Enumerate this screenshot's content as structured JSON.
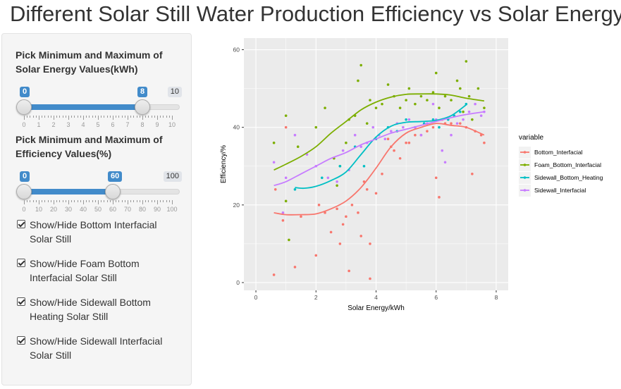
{
  "page": {
    "title": "Different Solar Still Water Production Efficiency vs Solar Energy"
  },
  "sidebar": {
    "energy_slider": {
      "label": "Pick Minimum and Maximum of Solar Energy Values(kWh)",
      "min": 0,
      "max": 10,
      "from": 0,
      "to": 8,
      "from_label": "0",
      "to_label": "8",
      "max_label": "10",
      "ticks": [
        "0",
        "1",
        "2",
        "3",
        "4",
        "5",
        "6",
        "7",
        "8",
        "9",
        "10"
      ]
    },
    "efficiency_slider": {
      "label": "Pick Minimum and Maximum of Efficiency Values(%)",
      "min": 0,
      "max": 100,
      "from": 0,
      "to": 60,
      "from_label": "0",
      "to_label": "60",
      "max_label": "100",
      "ticks": [
        "0",
        "10",
        "20",
        "30",
        "40",
        "50",
        "60",
        "70",
        "80",
        "90",
        "100"
      ]
    },
    "checkboxes": [
      {
        "label": "Show/Hide Bottom Interfacial Solar Still",
        "checked": true
      },
      {
        "label": "Show/Hide Foam Bottom Interfacial Solar Still",
        "checked": true
      },
      {
        "label": "Show/Hide Sidewall Bottom Heating Solar Still",
        "checked": true
      },
      {
        "label": "Show/Hide Sidewall Interfacial Solar Still",
        "checked": true
      }
    ]
  },
  "chart_data": {
    "type": "scatter",
    "xlabel": "Solar Energy/kWh",
    "ylabel": "Efficiency/%",
    "xlim": [
      -0.4,
      8.4
    ],
    "ylim": [
      -2,
      63
    ],
    "x_ticks": [
      0,
      2,
      4,
      6,
      8
    ],
    "y_ticks": [
      0,
      20,
      40,
      60
    ],
    "grid": true,
    "legend_title": "variable",
    "legend_position": "right",
    "series": [
      {
        "name": "Bottom_Interfacial",
        "color": "#F8766D",
        "points": [
          [
            0.6,
            2
          ],
          [
            0.65,
            24
          ],
          [
            0.9,
            16
          ],
          [
            1.0,
            40
          ],
          [
            1.3,
            4
          ],
          [
            1.5,
            17
          ],
          [
            2.0,
            7
          ],
          [
            2.1,
            20
          ],
          [
            2.3,
            18
          ],
          [
            2.5,
            13
          ],
          [
            2.7,
            19
          ],
          [
            2.8,
            10
          ],
          [
            2.9,
            15
          ],
          [
            3.0,
            17
          ],
          [
            3.1,
            3
          ],
          [
            3.2,
            20
          ],
          [
            3.4,
            18
          ],
          [
            3.5,
            12
          ],
          [
            3.6,
            26
          ],
          [
            3.7,
            24
          ],
          [
            3.8,
            10
          ],
          [
            3.8,
            1
          ],
          [
            4.0,
            23
          ],
          [
            4.2,
            28
          ],
          [
            4.4,
            37
          ],
          [
            4.5,
            35
          ],
          [
            4.6,
            34
          ],
          [
            4.8,
            32
          ],
          [
            5.0,
            36
          ],
          [
            5.1,
            36
          ],
          [
            5.3,
            38
          ],
          [
            5.5,
            38
          ],
          [
            5.7,
            39
          ],
          [
            5.9,
            40
          ],
          [
            6.0,
            27
          ],
          [
            6.1,
            22
          ],
          [
            6.2,
            42
          ],
          [
            6.3,
            41
          ],
          [
            6.5,
            41
          ],
          [
            6.6,
            43
          ],
          [
            6.8,
            41
          ],
          [
            7.0,
            40
          ],
          [
            7.2,
            28
          ],
          [
            7.3,
            39
          ],
          [
            7.5,
            38
          ],
          [
            7.6,
            36
          ]
        ],
        "trend": [
          [
            0.6,
            18
          ],
          [
            1.0,
            17.5
          ],
          [
            1.5,
            17.5
          ],
          [
            2.0,
            17.7
          ],
          [
            2.5,
            19
          ],
          [
            3.0,
            21
          ],
          [
            3.5,
            24.5
          ],
          [
            4.0,
            29.5
          ],
          [
            4.5,
            35
          ],
          [
            5.0,
            38.5
          ],
          [
            5.5,
            40
          ],
          [
            6.0,
            41
          ],
          [
            6.5,
            40.5
          ],
          [
            7.0,
            40
          ],
          [
            7.6,
            38
          ]
        ]
      },
      {
        "name": "Foam_Bottom_Interfacial",
        "color": "#7CAE00",
        "points": [
          [
            0.6,
            36
          ],
          [
            1.0,
            43
          ],
          [
            1.0,
            21
          ],
          [
            1.1,
            11
          ],
          [
            1.4,
            35
          ],
          [
            2.0,
            40
          ],
          [
            2.3,
            45
          ],
          [
            2.6,
            32
          ],
          [
            2.7,
            25
          ],
          [
            2.8,
            30
          ],
          [
            3.0,
            36
          ],
          [
            3.1,
            42
          ],
          [
            3.3,
            43
          ],
          [
            3.4,
            52
          ],
          [
            3.5,
            56
          ],
          [
            3.7,
            41
          ],
          [
            3.8,
            47
          ],
          [
            4.0,
            45
          ],
          [
            4.2,
            46
          ],
          [
            4.4,
            51
          ],
          [
            4.6,
            48
          ],
          [
            4.8,
            45
          ],
          [
            5.0,
            47
          ],
          [
            5.1,
            50
          ],
          [
            5.3,
            46
          ],
          [
            5.5,
            48
          ],
          [
            5.7,
            47
          ],
          [
            5.9,
            49
          ],
          [
            6.0,
            54
          ],
          [
            6.1,
            45
          ],
          [
            6.3,
            48
          ],
          [
            6.5,
            47
          ],
          [
            6.7,
            52
          ],
          [
            6.8,
            50
          ],
          [
            6.9,
            44
          ],
          [
            7.0,
            57
          ],
          [
            7.1,
            48
          ],
          [
            7.2,
            42
          ],
          [
            7.4,
            50
          ],
          [
            7.6,
            45
          ]
        ],
        "trend": [
          [
            0.6,
            29
          ],
          [
            1.0,
            30.5
          ],
          [
            1.5,
            32.5
          ],
          [
            2.0,
            35
          ],
          [
            2.5,
            38.5
          ],
          [
            3.0,
            41.5
          ],
          [
            3.5,
            44.5
          ],
          [
            4.0,
            46.5
          ],
          [
            4.5,
            47.8
          ],
          [
            5.0,
            48.5
          ],
          [
            5.5,
            48.6
          ],
          [
            6.0,
            48.6
          ],
          [
            6.5,
            48.3
          ],
          [
            7.0,
            47.5
          ],
          [
            7.6,
            46.8
          ]
        ]
      },
      {
        "name": "Sidewall_Bottom_Heating",
        "color": "#00BFC4",
        "points": [
          [
            1.3,
            24
          ],
          [
            2.2,
            27
          ],
          [
            2.8,
            30
          ],
          [
            3.3,
            35
          ],
          [
            3.6,
            30
          ],
          [
            4.0,
            37
          ],
          [
            4.4,
            40
          ],
          [
            4.7,
            39
          ],
          [
            5.0,
            42
          ],
          [
            5.3,
            40
          ],
          [
            5.6,
            41
          ],
          [
            5.9,
            42
          ],
          [
            6.1,
            40
          ],
          [
            6.4,
            42
          ],
          [
            6.6,
            43
          ],
          [
            6.8,
            44
          ],
          [
            7.0,
            46
          ]
        ],
        "trend": [
          [
            1.3,
            24.5
          ],
          [
            1.6,
            24.3
          ],
          [
            2.0,
            24.8
          ],
          [
            2.5,
            26.3
          ],
          [
            3.0,
            28.5
          ],
          [
            3.5,
            33
          ],
          [
            4.0,
            37.5
          ],
          [
            4.5,
            40.3
          ],
          [
            5.0,
            41.3
          ],
          [
            5.5,
            41.5
          ],
          [
            6.0,
            41.8
          ],
          [
            6.5,
            43
          ],
          [
            7.0,
            45.8
          ]
        ]
      },
      {
        "name": "Sidewall_Interfacial",
        "color": "#C77CFF",
        "points": [
          [
            0.6,
            31
          ],
          [
            0.9,
            18
          ],
          [
            1.0,
            27
          ],
          [
            1.3,
            38
          ],
          [
            1.7,
            33
          ],
          [
            2.0,
            30
          ],
          [
            2.4,
            27
          ],
          [
            2.7,
            26
          ],
          [
            2.9,
            34
          ],
          [
            3.1,
            29
          ],
          [
            3.3,
            38
          ],
          [
            3.5,
            35
          ],
          [
            3.7,
            36
          ],
          [
            3.9,
            40
          ],
          [
            4.1,
            38
          ],
          [
            4.3,
            37
          ],
          [
            4.5,
            39
          ],
          [
            4.7,
            41
          ],
          [
            4.9,
            40
          ],
          [
            5.1,
            42
          ],
          [
            5.3,
            40
          ],
          [
            5.5,
            38
          ],
          [
            5.7,
            41
          ],
          [
            5.9,
            46
          ],
          [
            6.0,
            42
          ],
          [
            6.2,
            34
          ],
          [
            6.3,
            31
          ],
          [
            6.5,
            38
          ],
          [
            6.7,
            41
          ],
          [
            6.9,
            42
          ],
          [
            7.1,
            44
          ],
          [
            7.3,
            46
          ],
          [
            7.5,
            43
          ],
          [
            7.6,
            44
          ]
        ],
        "trend": [
          [
            0.6,
            25
          ],
          [
            1.0,
            26
          ],
          [
            1.5,
            28
          ],
          [
            2.0,
            30
          ],
          [
            2.5,
            32
          ],
          [
            3.0,
            33.5
          ],
          [
            3.5,
            35.5
          ],
          [
            4.0,
            37
          ],
          [
            4.5,
            38.5
          ],
          [
            5.0,
            39.5
          ],
          [
            5.5,
            40.5
          ],
          [
            6.0,
            41.5
          ],
          [
            6.5,
            42.5
          ],
          [
            7.0,
            43.3
          ],
          [
            7.6,
            44
          ]
        ]
      }
    ]
  }
}
